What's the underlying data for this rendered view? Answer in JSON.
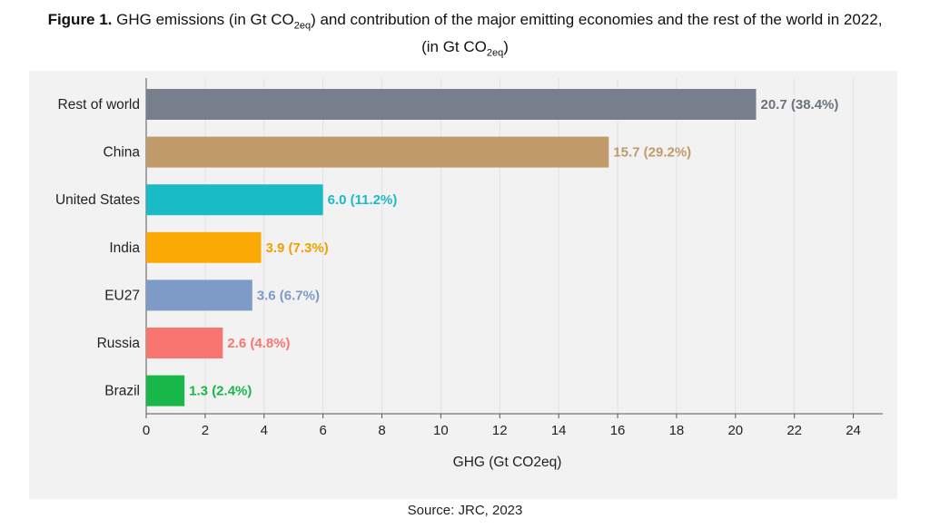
{
  "title": {
    "figure_label": "Figure 1.",
    "text_before_sub_1": "GHG emissions (in Gt CO",
    "sub_1": "2eq",
    "text_after_sub_1": ") and contribution of the major emitting economies and the rest of the world in 2022,",
    "line2_before_sub": "(in Gt CO",
    "sub_2": "2eq",
    "line2_after_sub": ")"
  },
  "source": "Source: JRC, 2023",
  "chart_data": {
    "type": "bar",
    "orientation": "horizontal",
    "categories": [
      "Rest of world",
      "China",
      "United States",
      "India",
      "EU27",
      "Russia",
      "Brazil"
    ],
    "values": [
      20.7,
      15.7,
      6.0,
      3.9,
      3.6,
      2.6,
      1.3
    ],
    "shares_percent": [
      38.4,
      29.2,
      11.2,
      7.3,
      6.7,
      4.8,
      2.4
    ],
    "data_labels": [
      "20.7 (38.4%)",
      "15.7 (29.2%)",
      "6.0 (11.2%)",
      "3.9 (7.3%)",
      "3.6 (6.7%)",
      "2.6 (4.8%)",
      "1.3 (2.4%)"
    ],
    "colors": [
      "#787f8c",
      "#c09a68",
      "#19bcc6",
      "#fba904",
      "#7d9bc6",
      "#f97670",
      "#17b74a"
    ],
    "label_colors": [
      "#6c7280",
      "#c09a68",
      "#19bcc6",
      "#f0a000",
      "#7d9bc6",
      "#f97670",
      "#17b74a"
    ],
    "xlabel": "GHG (Gt CO2eq)",
    "xlim": [
      0,
      25
    ],
    "xticks": [
      "0",
      "2",
      "4",
      "6",
      "8",
      "10",
      "12",
      "14",
      "16",
      "18",
      "20",
      "22",
      "24"
    ],
    "grid": true
  }
}
